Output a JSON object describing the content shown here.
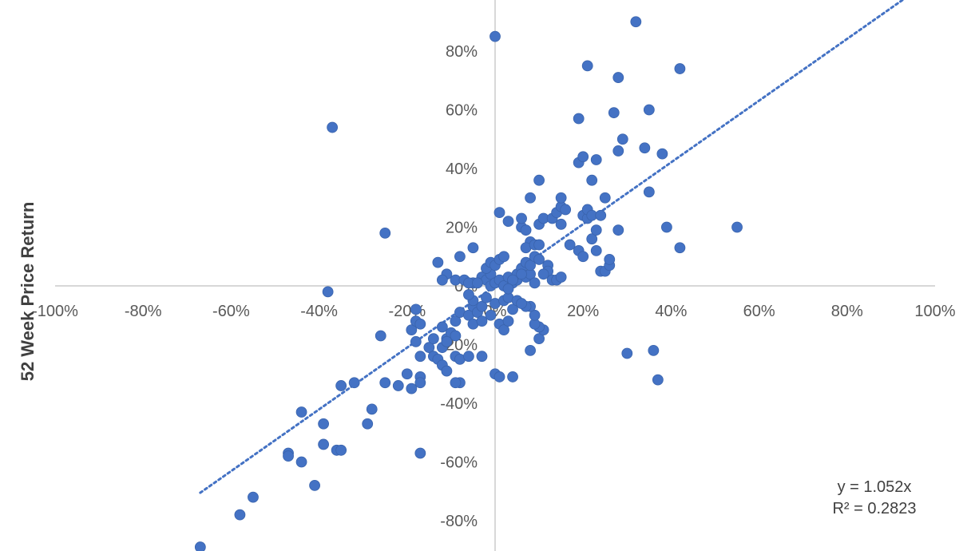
{
  "chart_data": {
    "type": "scatter",
    "title": "",
    "xlabel": "",
    "ylabel": "52 Week Price Return",
    "xlim": [
      -1.0,
      1.0
    ],
    "ylim": [
      -0.9,
      0.97
    ],
    "xticks": [
      -1.0,
      -0.8,
      -0.6,
      -0.4,
      -0.2,
      0.0,
      0.2,
      0.4,
      0.6,
      0.8,
      1.0
    ],
    "xtick_labels": [
      "-100%",
      "-80%",
      "-60%",
      "-40%",
      "-20%",
      "0%",
      "20%",
      "40%",
      "60%",
      "80%",
      "100%"
    ],
    "yticks": [
      -0.8,
      -0.6,
      -0.4,
      -0.2,
      0.0,
      0.2,
      0.4,
      0.6,
      0.8
    ],
    "ytick_labels": [
      "-80%",
      "-60%",
      "-40%",
      "-20%",
      "0%",
      "20%",
      "40%",
      "60%",
      "80%"
    ],
    "grid": false,
    "marker_color": "#4472C4",
    "trendline": {
      "type": "linear",
      "slope": 1.052,
      "intercept": 0,
      "x_range": [
        -0.67,
        0.95
      ],
      "style": "dotted",
      "color": "#4472C4",
      "equation_label": "y = 1.052x",
      "r2_label": "R² = 0.2823"
    },
    "points": [
      [
        -0.67,
        -0.89
      ],
      [
        -0.58,
        -0.78
      ],
      [
        -0.55,
        -0.72
      ],
      [
        -0.47,
        -0.57
      ],
      [
        -0.47,
        -0.58
      ],
      [
        -0.44,
        -0.6
      ],
      [
        -0.41,
        -0.68
      ],
      [
        -0.39,
        -0.54
      ],
      [
        -0.39,
        -0.47
      ],
      [
        -0.36,
        -0.56
      ],
      [
        -0.35,
        -0.56
      ],
      [
        -0.44,
        -0.43
      ],
      [
        -0.35,
        -0.34
      ],
      [
        -0.32,
        -0.33
      ],
      [
        -0.29,
        -0.47
      ],
      [
        -0.28,
        -0.42
      ],
      [
        -0.26,
        -0.17
      ],
      [
        -0.25,
        -0.33
      ],
      [
        -0.22,
        -0.34
      ],
      [
        -0.2,
        -0.3
      ],
      [
        -0.19,
        -0.35
      ],
      [
        -0.17,
        -0.57
      ],
      [
        -0.17,
        -0.31
      ],
      [
        -0.17,
        -0.33
      ],
      [
        -0.17,
        -0.24
      ],
      [
        -0.18,
        -0.19
      ],
      [
        -0.19,
        -0.15
      ],
      [
        -0.18,
        -0.12
      ],
      [
        -0.17,
        -0.13
      ],
      [
        -0.15,
        -0.21
      ],
      [
        -0.14,
        -0.24
      ],
      [
        -0.14,
        -0.18
      ],
      [
        -0.13,
        -0.25
      ],
      [
        -0.12,
        -0.27
      ],
      [
        -0.11,
        -0.29
      ],
      [
        -0.12,
        -0.21
      ],
      [
        -0.11,
        -0.18
      ],
      [
        -0.12,
        -0.14
      ],
      [
        -0.1,
        -0.16
      ],
      [
        -0.11,
        -0.19
      ],
      [
        -0.09,
        -0.24
      ],
      [
        -0.09,
        -0.17
      ],
      [
        -0.08,
        -0.25
      ],
      [
        -0.08,
        -0.33
      ],
      [
        -0.06,
        -0.24
      ],
      [
        -0.09,
        -0.12
      ],
      [
        -0.08,
        -0.09
      ],
      [
        -0.06,
        -0.1
      ],
      [
        -0.05,
        -0.13
      ],
      [
        -0.05,
        -0.07
      ],
      [
        -0.04,
        -0.09
      ],
      [
        -0.05,
        -0.05
      ],
      [
        -0.06,
        -0.03
      ],
      [
        -0.03,
        -0.12
      ],
      [
        -0.03,
        -0.07
      ],
      [
        -0.02,
        -0.04
      ],
      [
        -0.01,
        -0.1
      ],
      [
        0.0,
        -0.06
      ],
      [
        0.01,
        -0.13
      ],
      [
        0.02,
        -0.05
      ],
      [
        0.02,
        -0.15
      ],
      [
        0.03,
        -0.12
      ],
      [
        0.04,
        -0.08
      ],
      [
        0.03,
        -0.04
      ],
      [
        0.05,
        -0.05
      ],
      [
        -0.11,
        0.04
      ],
      [
        -0.09,
        0.02
      ],
      [
        -0.07,
        0.02
      ],
      [
        -0.05,
        0.01
      ],
      [
        -0.03,
        0.03
      ],
      [
        -0.02,
        0.02
      ],
      [
        -0.01,
        0.04
      ],
      [
        -0.01,
        0.0
      ],
      [
        0.0,
        0.01
      ],
      [
        0.01,
        0.02
      ],
      [
        0.02,
        0.0
      ],
      [
        0.03,
        0.03
      ],
      [
        0.04,
        0.01
      ],
      [
        0.05,
        0.02
      ],
      [
        0.05,
        0.04
      ],
      [
        0.06,
        0.06
      ],
      [
        0.07,
        0.03
      ],
      [
        0.07,
        0.08
      ],
      [
        0.08,
        0.04
      ],
      [
        0.08,
        0.07
      ],
      [
        -0.02,
        0.06
      ],
      [
        -0.01,
        0.08
      ],
      [
        0.0,
        0.07
      ],
      [
        0.01,
        0.09
      ],
      [
        0.02,
        0.1
      ],
      [
        -0.05,
        0.13
      ],
      [
        -0.08,
        0.1
      ],
      [
        -0.13,
        0.08
      ],
      [
        -0.12,
        0.02
      ],
      [
        -0.06,
        0.01
      ],
      [
        -0.25,
        0.18
      ],
      [
        -0.37,
        0.54
      ],
      [
        -0.38,
        -0.02
      ],
      [
        -0.18,
        -0.08
      ],
      [
        0.0,
        0.85
      ],
      [
        0.01,
        0.25
      ],
      [
        0.03,
        0.22
      ],
      [
        0.06,
        0.2
      ],
      [
        0.07,
        0.19
      ],
      [
        0.06,
        0.23
      ],
      [
        0.08,
        0.15
      ],
      [
        0.07,
        0.13
      ],
      [
        0.09,
        0.1
      ],
      [
        0.1,
        0.09
      ],
      [
        0.09,
        0.14
      ],
      [
        0.08,
        0.3
      ],
      [
        0.1,
        0.21
      ],
      [
        0.11,
        0.23
      ],
      [
        0.1,
        0.14
      ],
      [
        0.12,
        0.07
      ],
      [
        0.13,
        0.23
      ],
      [
        0.14,
        0.25
      ],
      [
        0.15,
        0.27
      ],
      [
        0.15,
        0.21
      ],
      [
        0.15,
        0.3
      ],
      [
        0.16,
        0.26
      ],
      [
        0.17,
        0.14
      ],
      [
        0.19,
        0.12
      ],
      [
        0.2,
        0.1
      ],
      [
        0.2,
        0.24
      ],
      [
        0.21,
        0.23
      ],
      [
        0.21,
        0.26
      ],
      [
        0.22,
        0.24
      ],
      [
        0.22,
        0.16
      ],
      [
        0.23,
        0.12
      ],
      [
        0.23,
        0.19
      ],
      [
        0.24,
        0.24
      ],
      [
        0.24,
        0.05
      ],
      [
        0.25,
        0.05
      ],
      [
        0.25,
        0.3
      ],
      [
        0.26,
        0.07
      ],
      [
        0.26,
        0.09
      ],
      [
        0.28,
        0.19
      ],
      [
        0.1,
        0.36
      ],
      [
        0.19,
        0.42
      ],
      [
        0.2,
        0.44
      ],
      [
        0.22,
        0.36
      ],
      [
        0.23,
        0.43
      ],
      [
        0.19,
        0.57
      ],
      [
        0.21,
        0.75
      ],
      [
        0.27,
        0.59
      ],
      [
        0.28,
        0.71
      ],
      [
        0.28,
        0.46
      ],
      [
        0.29,
        0.5
      ],
      [
        0.32,
        0.9
      ],
      [
        0.35,
        0.6
      ],
      [
        0.34,
        0.47
      ],
      [
        0.35,
        0.32
      ],
      [
        0.38,
        0.45
      ],
      [
        0.39,
        0.2
      ],
      [
        0.42,
        0.74
      ],
      [
        0.42,
        0.13
      ],
      [
        0.55,
        0.2
      ],
      [
        0.3,
        -0.23
      ],
      [
        0.36,
        -0.22
      ],
      [
        0.37,
        -0.32
      ],
      [
        0.08,
        -0.22
      ],
      [
        0.1,
        -0.18
      ],
      [
        0.11,
        -0.15
      ],
      [
        0.1,
        -0.14
      ],
      [
        0.09,
        -0.13
      ],
      [
        0.09,
        -0.1
      ],
      [
        0.08,
        -0.07
      ],
      [
        0.07,
        -0.07
      ],
      [
        0.06,
        -0.06
      ],
      [
        0.04,
        -0.31
      ],
      [
        0.0,
        -0.3
      ],
      [
        0.01,
        -0.31
      ],
      [
        -0.03,
        -0.24
      ],
      [
        -0.09,
        -0.33
      ],
      [
        0.12,
        0.05
      ],
      [
        0.13,
        0.02
      ],
      [
        0.14,
        0.02
      ],
      [
        0.15,
        0.03
      ],
      [
        0.11,
        0.04
      ],
      [
        0.04,
        0.02
      ],
      [
        0.06,
        0.04
      ],
      [
        0.09,
        0.01
      ],
      [
        0.03,
        -0.01
      ],
      [
        -0.04,
        0.01
      ]
    ]
  }
}
